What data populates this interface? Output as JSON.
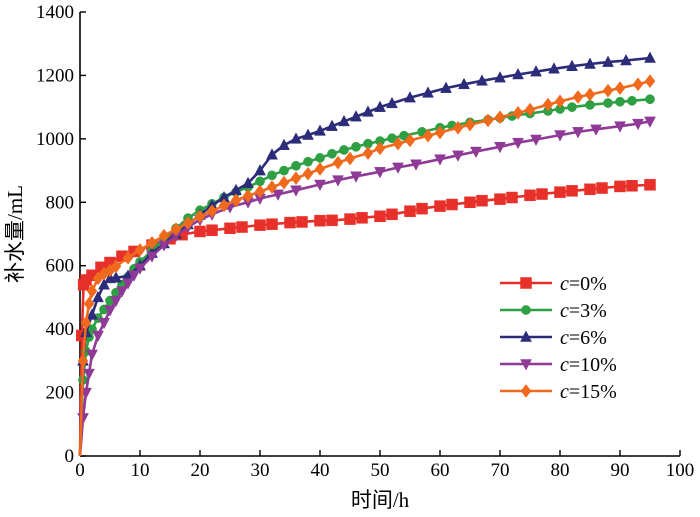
{
  "chart_data": {
    "type": "line",
    "xlabel": "时间/h",
    "ylabel": "补水量/mL",
    "xlim": [
      0,
      100
    ],
    "ylim": [
      0,
      1400
    ],
    "xticks": [
      0,
      10,
      20,
      30,
      40,
      50,
      60,
      70,
      80,
      90,
      100
    ],
    "yticks": [
      0,
      200,
      400,
      600,
      800,
      1000,
      1200,
      1400
    ],
    "grid": false,
    "legend_position": "lower-right",
    "series": [
      {
        "name": "c=0%",
        "var": "c",
        "value_label": "=0%",
        "color": "#e8302a",
        "marker": "square",
        "x": [
          0,
          0.3,
          0.6,
          1,
          2,
          3.5,
          5,
          7,
          9,
          12,
          15,
          17,
          20,
          22,
          25,
          27,
          30,
          32,
          35,
          37,
          40,
          42,
          45,
          47,
          50,
          52,
          55,
          57,
          60,
          62,
          65,
          67,
          70,
          72,
          75,
          77,
          80,
          82,
          85,
          87,
          90,
          92,
          95
        ],
        "y": [
          0,
          380,
          540,
          555,
          570,
          595,
          610,
          630,
          645,
          665,
          685,
          698,
          708,
          712,
          718,
          722,
          728,
          731,
          736,
          738,
          742,
          743,
          747,
          751,
          756,
          762,
          772,
          780,
          788,
          793,
          800,
          805,
          810,
          815,
          822,
          826,
          832,
          836,
          841,
          845,
          850,
          852,
          855
        ]
      },
      {
        "name": "c=3%",
        "var": "c",
        "value_label": "=3%",
        "color": "#2ea043",
        "marker": "circle",
        "x": [
          0,
          0.5,
          1,
          1.5,
          2,
          3,
          4,
          5,
          6,
          7,
          8,
          9,
          10,
          12,
          14,
          16,
          18,
          20,
          22,
          24,
          26,
          28,
          30,
          32,
          34,
          36,
          38,
          40,
          42,
          44,
          46,
          48,
          50,
          52,
          54,
          57,
          60,
          62,
          65,
          68,
          70,
          72,
          75,
          78,
          80,
          82,
          85,
          88,
          90,
          92,
          95
        ],
        "y": [
          0,
          240,
          330,
          375,
          400,
          435,
          462,
          490,
          515,
          540,
          565,
          590,
          612,
          648,
          685,
          718,
          750,
          775,
          795,
          815,
          832,
          848,
          866,
          885,
          900,
          915,
          928,
          940,
          953,
          965,
          975,
          985,
          993,
          1002,
          1010,
          1022,
          1035,
          1042,
          1052,
          1060,
          1066,
          1072,
          1080,
          1088,
          1094,
          1100,
          1107,
          1113,
          1117,
          1120,
          1125
        ]
      },
      {
        "name": "c=6%",
        "var": "c",
        "value_label": "=6%",
        "color": "#2c2c7a",
        "marker": "triangle",
        "x": [
          0,
          0.5,
          1,
          2,
          3,
          4,
          5,
          6,
          8,
          10,
          12,
          14,
          16,
          18,
          20,
          22,
          24,
          26,
          28,
          30,
          32,
          34,
          36,
          38,
          40,
          42,
          44,
          46,
          48,
          50,
          52,
          55,
          58,
          61,
          64,
          67,
          70,
          73,
          76,
          79,
          82,
          85,
          88,
          91,
          95
        ],
        "y": [
          0,
          300,
          390,
          445,
          500,
          540,
          560,
          562,
          568,
          600,
          640,
          670,
          700,
          730,
          760,
          790,
          815,
          838,
          860,
          900,
          950,
          980,
          1000,
          1012,
          1025,
          1040,
          1055,
          1070,
          1085,
          1100,
          1112,
          1130,
          1145,
          1160,
          1172,
          1183,
          1193,
          1203,
          1212,
          1221,
          1229,
          1236,
          1242,
          1247,
          1255
        ]
      },
      {
        "name": "c=10%",
        "var": "c",
        "value_label": "=10%",
        "color": "#8e3a96",
        "marker": "triangle-down",
        "x": [
          0,
          0.5,
          1,
          1.5,
          2,
          3,
          4,
          5,
          6,
          7,
          8,
          9,
          10,
          12,
          14,
          16,
          18,
          20,
          22,
          25,
          28,
          30,
          33,
          36,
          40,
          43,
          46,
          50,
          53,
          56,
          60,
          63,
          66,
          70,
          73,
          76,
          80,
          83,
          86,
          90,
          93,
          95
        ],
        "y": [
          0,
          120,
          200,
          260,
          320,
          380,
          420,
          460,
          490,
          520,
          545,
          570,
          592,
          630,
          665,
          695,
          722,
          745,
          762,
          785,
          800,
          812,
          825,
          838,
          856,
          870,
          882,
          896,
          910,
          920,
          936,
          948,
          960,
          975,
          988,
          998,
          1012,
          1022,
          1030,
          1040,
          1048,
          1055
        ]
      },
      {
        "name": "c=15%",
        "var": "c",
        "value_label": "=15%",
        "color": "#f06a1e",
        "marker": "diamond",
        "x": [
          0,
          0.5,
          1,
          1.5,
          2,
          3,
          4,
          5,
          6,
          8,
          10,
          12,
          14,
          16,
          18,
          20,
          22,
          24,
          26,
          28,
          30,
          32,
          34,
          36,
          38,
          40,
          43,
          45,
          48,
          50,
          53,
          55,
          58,
          60,
          63,
          65,
          68,
          70,
          73,
          75,
          78,
          80,
          83,
          85,
          88,
          90,
          93,
          95
        ],
        "y": [
          0,
          300,
          420,
          480,
          520,
          560,
          575,
          585,
          598,
          625,
          650,
          672,
          695,
          715,
          735,
          755,
          772,
          790,
          806,
          820,
          834,
          848,
          862,
          876,
          890,
          905,
          925,
          938,
          955,
          970,
          985,
          995,
          1010,
          1020,
          1035,
          1045,
          1058,
          1068,
          1082,
          1092,
          1108,
          1118,
          1132,
          1140,
          1152,
          1160,
          1172,
          1182
        ]
      }
    ]
  }
}
